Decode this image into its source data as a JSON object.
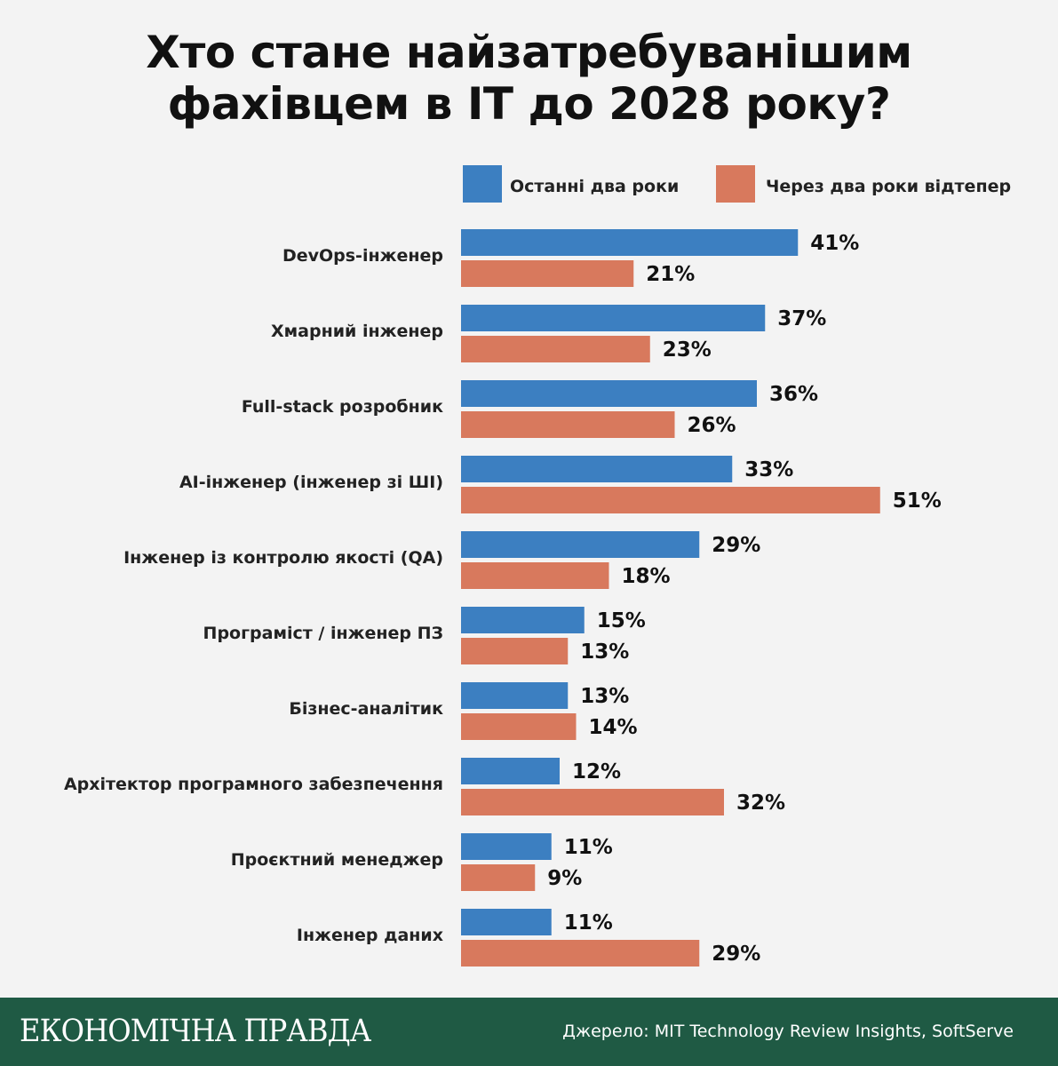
{
  "title_lines": [
    "Хто стане найзатребуванішим",
    "фахівцем в IT до 2028 року?"
  ],
  "chart_data": {
    "type": "bar",
    "orientation": "horizontal",
    "title": "Хто стане найзатребуванішим фахівцем в IT до 2028 року?",
    "categories": [
      "DevOps-інженер",
      "Хмарний інженер",
      "Full-stack розробник",
      "AI-інженер (інженер зі ШІ)",
      "Інженер із контролю якості (QA)",
      "Програміст / інженер ПЗ",
      "Бізнес-аналітик",
      "Архітектор програмного забезпечення",
      "Проєктний менеджер",
      "Інженер даних"
    ],
    "series": [
      {
        "name": "Останні два роки",
        "color": "#3c7fc1",
        "values": [
          41,
          37,
          36,
          33,
          29,
          15,
          13,
          12,
          11,
          11
        ]
      },
      {
        "name": "Через два роки відтепер",
        "color": "#d8795d",
        "values": [
          21,
          23,
          26,
          51,
          18,
          13,
          14,
          32,
          9,
          29
        ]
      }
    ],
    "value_suffix": "%",
    "legend_position": "top-right",
    "grid": false
  },
  "footer": {
    "brand": "ЕКОНОМІЧНА ПРАВДА",
    "source": "Джерело: MIT Technology Review Insights, SoftServe"
  },
  "colors": {
    "background": "#f3f3f3",
    "footer": "#1f5a44"
  }
}
